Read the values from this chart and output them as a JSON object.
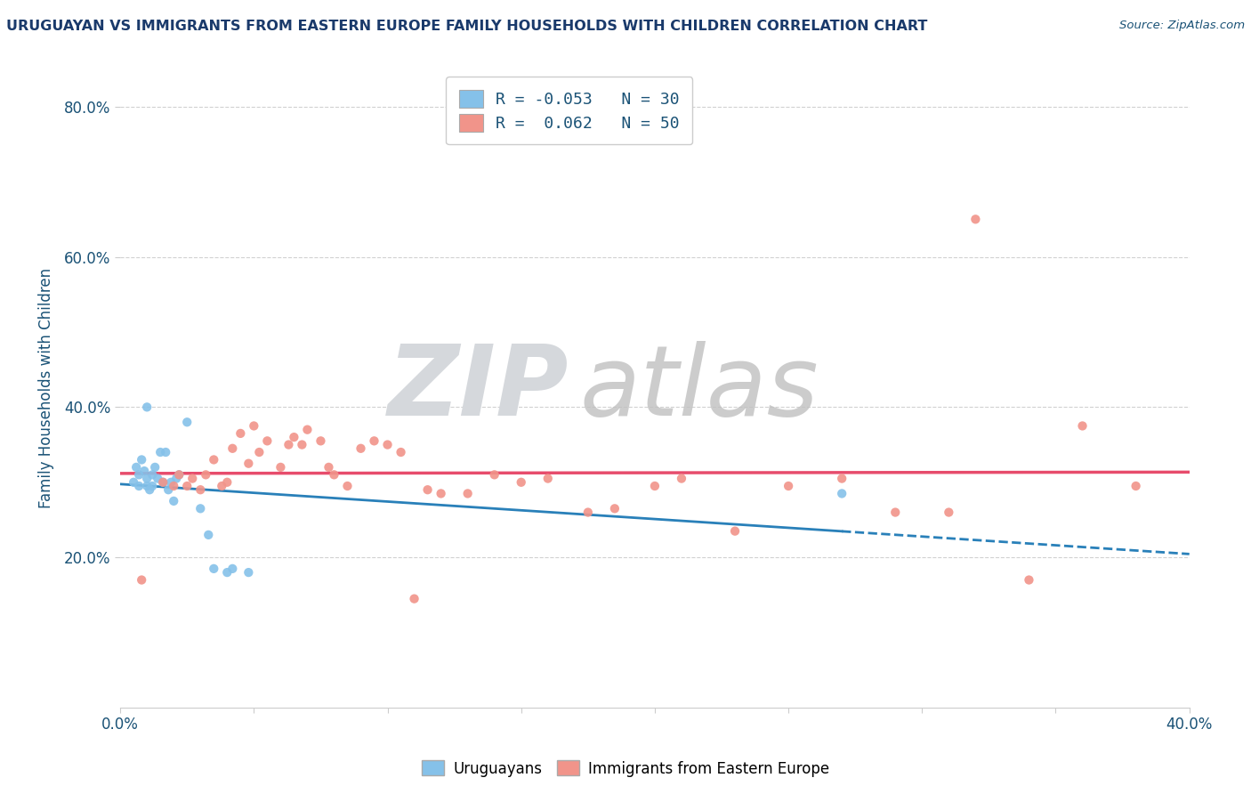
{
  "title": "URUGUAYAN VS IMMIGRANTS FROM EASTERN EUROPE FAMILY HOUSEHOLDS WITH CHILDREN CORRELATION CHART",
  "source": "Source: ZipAtlas.com",
  "ylabel": "Family Households with Children",
  "xlim": [
    0.0,
    0.4
  ],
  "ylim": [
    0.0,
    0.85
  ],
  "xticks": [
    0.0,
    0.05,
    0.1,
    0.15,
    0.2,
    0.25,
    0.3,
    0.35,
    0.4
  ],
  "yticks": [
    0.2,
    0.4,
    0.6,
    0.8
  ],
  "ytick_labels": [
    "20.0%",
    "40.0%",
    "60.0%",
    "80.0%"
  ],
  "xtick_labels": [
    "0.0%",
    "",
    "",
    "",
    "",
    "",
    "",
    "",
    "40.0%"
  ],
  "legend_r1_val": "-0.053",
  "legend_n1": "30",
  "legend_r2_val": "0.062",
  "legend_n2": "50",
  "color_uruguayan": "#85C1E9",
  "color_eastern": "#F1948A",
  "line_color_uruguayan": "#2980B9",
  "line_color_eastern": "#E74C6C",
  "uruguayan_scatter": [
    [
      0.005,
      0.3
    ],
    [
      0.006,
      0.32
    ],
    [
      0.007,
      0.31
    ],
    [
      0.007,
      0.295
    ],
    [
      0.008,
      0.33
    ],
    [
      0.009,
      0.315
    ],
    [
      0.01,
      0.305
    ],
    [
      0.01,
      0.295
    ],
    [
      0.01,
      0.4
    ],
    [
      0.011,
      0.29
    ],
    [
      0.012,
      0.295
    ],
    [
      0.012,
      0.31
    ],
    [
      0.013,
      0.32
    ],
    [
      0.014,
      0.305
    ],
    [
      0.015,
      0.34
    ],
    [
      0.016,
      0.3
    ],
    [
      0.017,
      0.34
    ],
    [
      0.018,
      0.29
    ],
    [
      0.019,
      0.3
    ],
    [
      0.02,
      0.275
    ],
    [
      0.021,
      0.305
    ],
    [
      0.022,
      0.31
    ],
    [
      0.025,
      0.38
    ],
    [
      0.03,
      0.265
    ],
    [
      0.033,
      0.23
    ],
    [
      0.035,
      0.185
    ],
    [
      0.04,
      0.18
    ],
    [
      0.042,
      0.185
    ],
    [
      0.048,
      0.18
    ],
    [
      0.27,
      0.285
    ]
  ],
  "eastern_scatter": [
    [
      0.008,
      0.17
    ],
    [
      0.016,
      0.3
    ],
    [
      0.02,
      0.295
    ],
    [
      0.022,
      0.31
    ],
    [
      0.025,
      0.295
    ],
    [
      0.027,
      0.305
    ],
    [
      0.03,
      0.29
    ],
    [
      0.032,
      0.31
    ],
    [
      0.035,
      0.33
    ],
    [
      0.038,
      0.295
    ],
    [
      0.04,
      0.3
    ],
    [
      0.042,
      0.345
    ],
    [
      0.045,
      0.365
    ],
    [
      0.048,
      0.325
    ],
    [
      0.05,
      0.375
    ],
    [
      0.052,
      0.34
    ],
    [
      0.055,
      0.355
    ],
    [
      0.06,
      0.32
    ],
    [
      0.063,
      0.35
    ],
    [
      0.065,
      0.36
    ],
    [
      0.068,
      0.35
    ],
    [
      0.07,
      0.37
    ],
    [
      0.075,
      0.355
    ],
    [
      0.078,
      0.32
    ],
    [
      0.08,
      0.31
    ],
    [
      0.085,
      0.295
    ],
    [
      0.09,
      0.345
    ],
    [
      0.095,
      0.355
    ],
    [
      0.1,
      0.35
    ],
    [
      0.105,
      0.34
    ],
    [
      0.11,
      0.145
    ],
    [
      0.115,
      0.29
    ],
    [
      0.12,
      0.285
    ],
    [
      0.13,
      0.285
    ],
    [
      0.14,
      0.31
    ],
    [
      0.15,
      0.3
    ],
    [
      0.16,
      0.305
    ],
    [
      0.175,
      0.26
    ],
    [
      0.185,
      0.265
    ],
    [
      0.2,
      0.295
    ],
    [
      0.21,
      0.305
    ],
    [
      0.23,
      0.235
    ],
    [
      0.25,
      0.295
    ],
    [
      0.27,
      0.305
    ],
    [
      0.29,
      0.26
    ],
    [
      0.31,
      0.26
    ],
    [
      0.32,
      0.65
    ],
    [
      0.34,
      0.17
    ],
    [
      0.36,
      0.375
    ],
    [
      0.38,
      0.295
    ]
  ],
  "background_color": "#ffffff",
  "grid_color": "#cccccc",
  "title_color": "#1A3A6B",
  "axis_color": "#1A5276",
  "watermark_zip_color": "#D5D8DC",
  "watermark_atlas_color": "#C0C0C0"
}
